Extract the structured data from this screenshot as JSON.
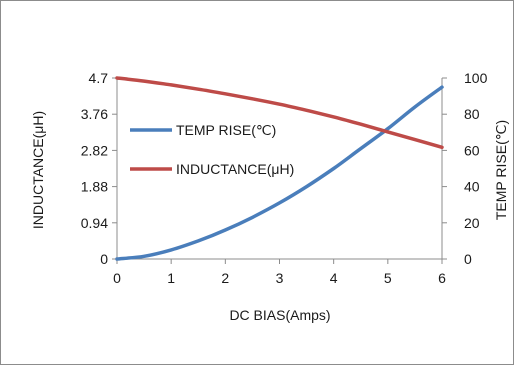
{
  "chart_data": {
    "type": "line",
    "xlabel": "DC  BIAS(Amps)",
    "ylabel_left": "INDUCTANCE(μH)",
    "ylabel_right": "TEMP RISE(℃)",
    "xlim": [
      0,
      6
    ],
    "ylim_left": [
      0,
      4.7
    ],
    "ylim_right": [
      0,
      100
    ],
    "x_ticks": [
      "0",
      "1",
      "2",
      "3",
      "4",
      "5",
      "6"
    ],
    "y_ticks_left": [
      "0",
      "0.94",
      "1.88",
      "2.82",
      "3.76",
      "4.7"
    ],
    "y_ticks_right": [
      "0",
      "20",
      "40",
      "60",
      "80",
      "100"
    ],
    "grid": false,
    "legend_position": "upper-left",
    "series": [
      {
        "name": "TEMP RISE(℃)",
        "axis": "right",
        "color": "#4a7ebb",
        "x": [
          0,
          0.5,
          1,
          1.5,
          2,
          2.5,
          3,
          3.5,
          4,
          4.5,
          5,
          5.5,
          6
        ],
        "y": [
          0,
          1.5,
          5,
          10,
          16,
          23,
          31,
          40,
          50,
          61,
          72,
          84,
          95
        ]
      },
      {
        "name": "INDUCTANCE(μH)",
        "axis": "left",
        "color": "#be4b48",
        "x": [
          0,
          0.5,
          1,
          1.5,
          2,
          2.5,
          3,
          3.5,
          4,
          4.5,
          5,
          5.5,
          6
        ],
        "y": [
          4.7,
          4.62,
          4.52,
          4.41,
          4.29,
          4.16,
          4.02,
          3.86,
          3.69,
          3.5,
          3.3,
          3.1,
          2.9
        ]
      }
    ]
  }
}
